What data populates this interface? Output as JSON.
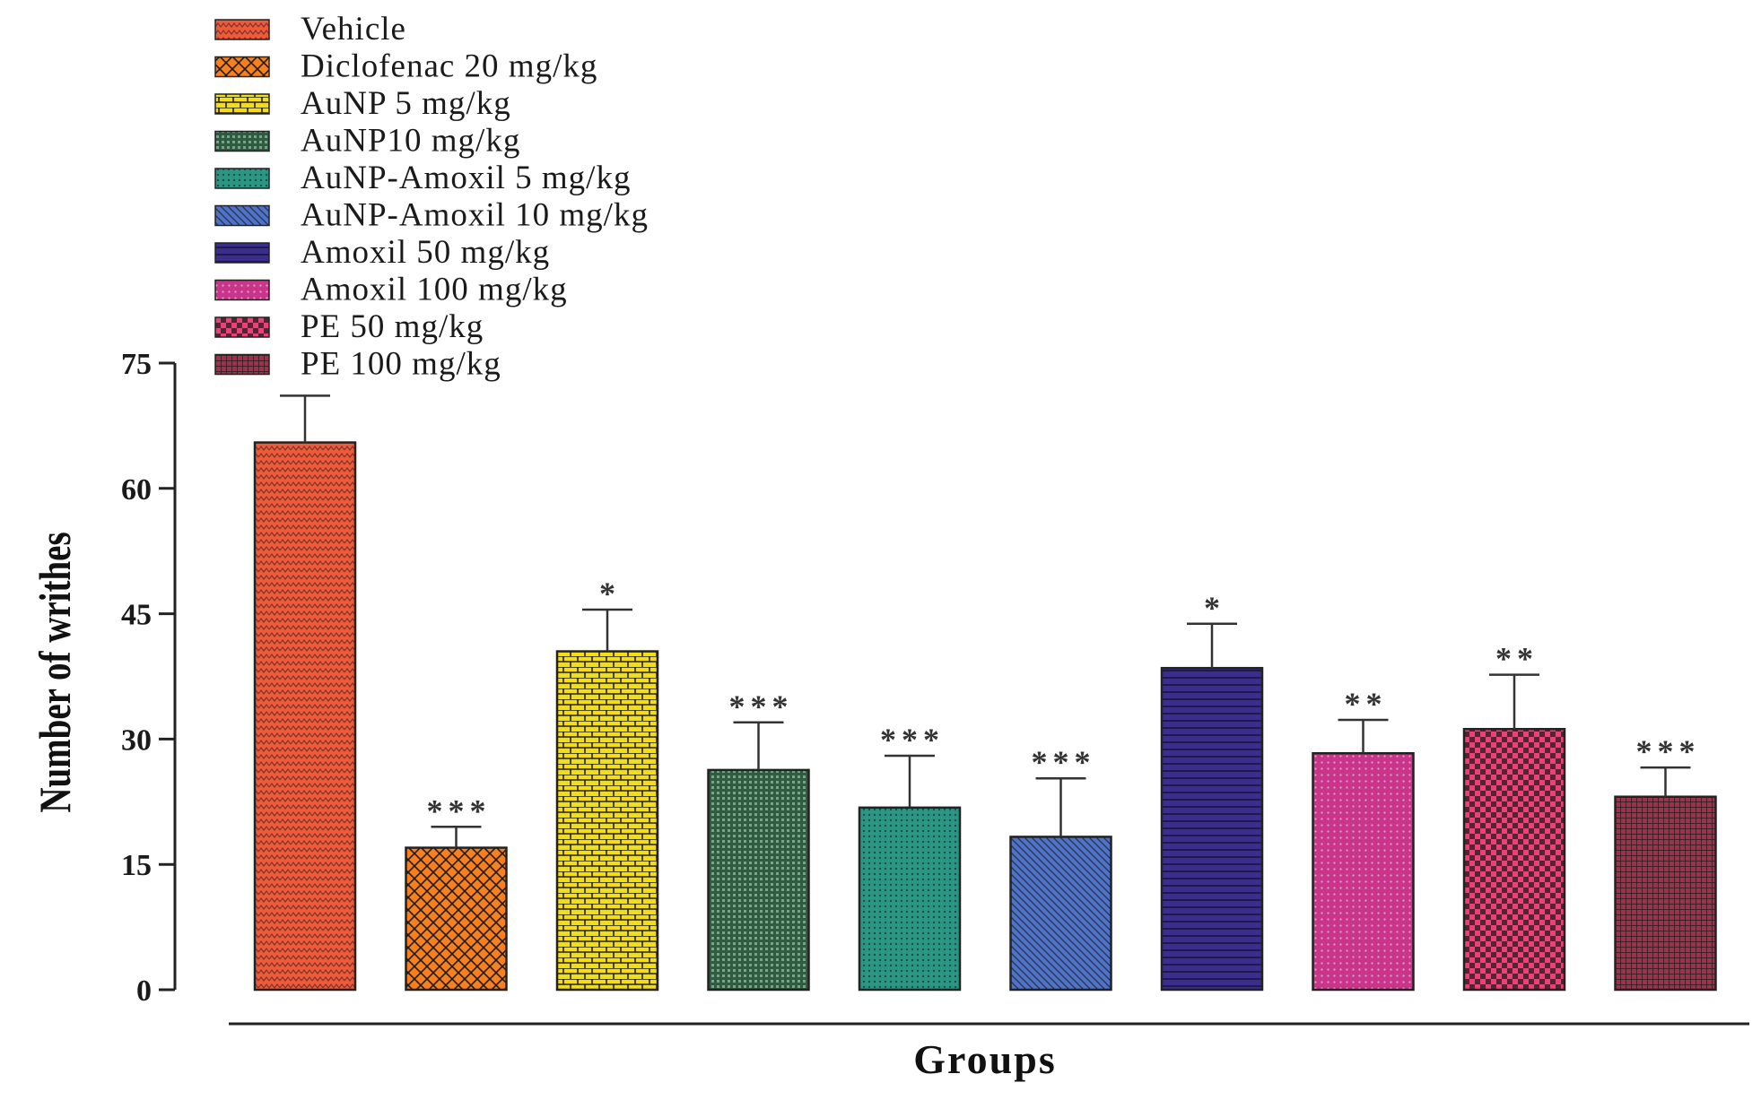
{
  "chart_data": {
    "type": "bar",
    "title": "",
    "xlabel": "Groups",
    "ylabel": "Number of writhes",
    "ylim": [
      0,
      75
    ],
    "yticks": [
      "0",
      "15",
      "30",
      "45",
      "60",
      "75"
    ],
    "grid": false,
    "legend_position": "top-left",
    "categories": [
      "Vehicle",
      "Diclofenac 20 mg/kg",
      "AuNP 5 mg/kg",
      "AuNP10 mg/kg",
      "AuNP-Amoxil 5 mg/kg",
      "AuNP-Amoxil 10 mg/kg",
      "Amoxil 50 mg/kg",
      "Amoxil 100 mg/kg",
      "PE 50 mg/kg",
      "PE 100 mg/kg"
    ],
    "values": [
      65.5,
      17,
      40.5,
      26.3,
      21.8,
      18.3,
      38.5,
      28.3,
      31.2,
      23.1
    ],
    "errors": [
      5.6,
      2.5,
      5.0,
      5.7,
      6.2,
      7.0,
      5.3,
      4.0,
      6.5,
      3.5
    ],
    "significance": [
      "",
      "***",
      "*",
      "***",
      "***",
      "***",
      "*",
      "**",
      "**",
      "***"
    ],
    "colors": [
      "#ef5a3a",
      "#f77f1e",
      "#f4dd10",
      "#2f5c40",
      "#2a9684",
      "#4e73c8",
      "#3a2d8c",
      "#c8358a",
      "#ef3f78",
      "#a52e4a"
    ],
    "patterns": [
      "zigzag",
      "crosshatch",
      "brick",
      "dots-grid",
      "dots",
      "diagonal",
      "horizontal",
      "dots-fine",
      "checker",
      "dense-grid"
    ]
  }
}
